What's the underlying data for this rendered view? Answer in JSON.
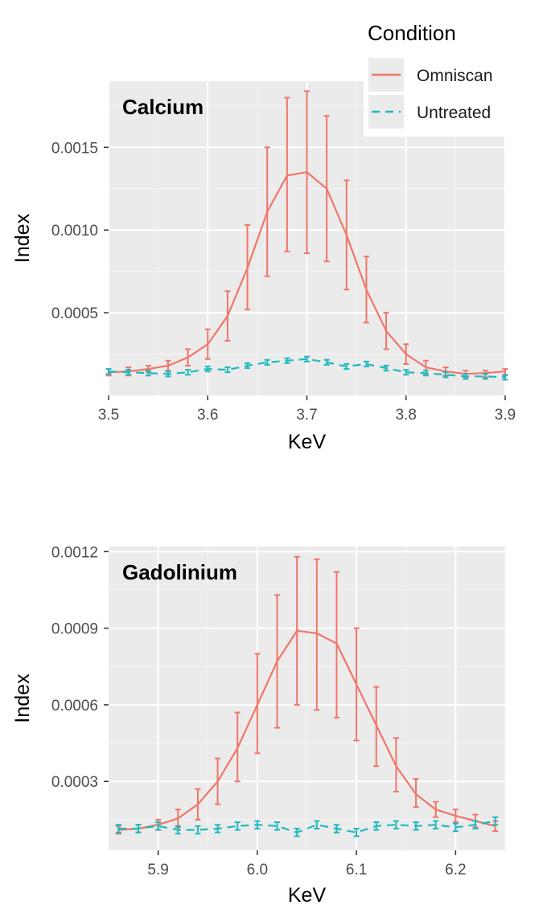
{
  "legend": {
    "title": "Condition",
    "placement": "top-right",
    "items": [
      {
        "label": "Omniscan",
        "color": "#F07669",
        "dash": "solid"
      },
      {
        "label": "Untreated",
        "color": "#1FB9BE",
        "dash": "dashed"
      }
    ]
  },
  "chart_data": [
    {
      "type": "line",
      "title": "Calcium",
      "xlabel": "KeV",
      "ylabel": "Index",
      "xlim": [
        3.5,
        3.9
      ],
      "ylim": [
        0,
        0.0019
      ],
      "x_ticks": [
        "3.5",
        "3.6",
        "3.7",
        "3.8",
        "3.9"
      ],
      "y_ticks": [
        "0.0005",
        "0.0010",
        "0.0015"
      ],
      "grid": true,
      "x": [
        3.5,
        3.52,
        3.54,
        3.56,
        3.58,
        3.6,
        3.62,
        3.64,
        3.66,
        3.68,
        3.7,
        3.72,
        3.74,
        3.76,
        3.78,
        3.8,
        3.82,
        3.84,
        3.86,
        3.88,
        3.9
      ],
      "series": [
        {
          "name": "Omniscan",
          "color": "#F07669",
          "values": [
            0.00014,
            0.000145,
            0.00016,
            0.00018,
            0.00023,
            0.00031,
            0.00048,
            0.00077,
            0.00111,
            0.00133,
            0.00135,
            0.00125,
            0.00097,
            0.00064,
            0.00039,
            0.00025,
            0.00017,
            0.000145,
            0.00013,
            0.000135,
            0.000145
          ],
          "err_low": [
            0.00012,
            0.00012,
            0.00014,
            0.00015,
            0.00018,
            0.00022,
            0.00033,
            0.00052,
            0.00072,
            0.00087,
            0.00086,
            0.00081,
            0.00064,
            0.00044,
            0.00028,
            0.00019,
            0.00013,
            0.00012,
            0.00011,
            0.00011,
            0.00012
          ],
          "err_high": [
            0.00016,
            0.00017,
            0.00018,
            0.00021,
            0.00028,
            0.0004,
            0.00063,
            0.00103,
            0.0015,
            0.0018,
            0.00184,
            0.00169,
            0.0013,
            0.00084,
            0.0005,
            0.00031,
            0.00021,
            0.00017,
            0.00015,
            0.00015,
            0.00016
          ]
        },
        {
          "name": "Untreated",
          "color": "#1FB9BE",
          "values": [
            0.000145,
            0.00014,
            0.000135,
            0.00013,
            0.00014,
            0.00016,
            0.000155,
            0.00018,
            0.0002,
            0.00021,
            0.00022,
            0.0002,
            0.000175,
            0.00019,
            0.000165,
            0.00014,
            0.000135,
            0.000125,
            0.000115,
            0.000115,
            0.00011
          ],
          "err_low": [
            0.00013,
            0.000125,
            0.00012,
            0.000115,
            0.000125,
            0.000145,
            0.00014,
            0.000165,
            0.000185,
            0.000195,
            0.000205,
            0.000185,
            0.00016,
            0.000175,
            0.00015,
            0.000125,
            0.00012,
            0.00011,
            0.0001,
            0.0001,
            9.5e-05
          ],
          "err_high": [
            0.00016,
            0.000155,
            0.00015,
            0.000145,
            0.000155,
            0.000175,
            0.00017,
            0.000195,
            0.000215,
            0.000225,
            0.000235,
            0.000215,
            0.00019,
            0.000205,
            0.00018,
            0.000155,
            0.00015,
            0.00014,
            0.00013,
            0.00013,
            0.000125
          ]
        }
      ]
    },
    {
      "type": "line",
      "title": "Gadolinium",
      "xlabel": "KeV",
      "ylabel": "Index",
      "xlim": [
        5.85,
        6.25
      ],
      "ylim": [
        3e-05,
        0.00122
      ],
      "x_ticks": [
        "5.9",
        "6.0",
        "6.1",
        "6.2"
      ],
      "y_ticks": [
        "0.0003",
        "0.0006",
        "0.0009",
        "0.0012"
      ],
      "grid": true,
      "x": [
        5.86,
        5.88,
        5.9,
        5.92,
        5.94,
        5.96,
        5.98,
        6.0,
        6.02,
        6.04,
        6.06,
        6.08,
        6.1,
        6.12,
        6.14,
        6.16,
        6.18,
        6.2,
        6.22,
        6.24
      ],
      "series": [
        {
          "name": "Omniscan",
          "color": "#F07669",
          "values": [
            0.00011,
            0.000115,
            0.00013,
            0.000155,
            0.00021,
            0.0003,
            0.00043,
            0.0006,
            0.00077,
            0.00089,
            0.00088,
            0.00084,
            0.00068,
            0.00052,
            0.00036,
            0.00025,
            0.00019,
            0.000165,
            0.000145,
            0.000125
          ],
          "err_low": [
            9.5e-05,
            0.0001,
            0.00011,
            0.00012,
            0.00015,
            0.00021,
            0.0003,
            0.00041,
            0.00051,
            0.0006,
            0.00058,
            0.00055,
            0.00046,
            0.00036,
            0.00026,
            0.0002,
            0.00016,
            0.00014,
            0.00012,
            0.000105
          ],
          "err_high": [
            0.000125,
            0.00013,
            0.00015,
            0.00019,
            0.00027,
            0.00039,
            0.00057,
            0.0008,
            0.00103,
            0.00118,
            0.00117,
            0.00112,
            0.0009,
            0.00067,
            0.00047,
            0.00031,
            0.00022,
            0.00019,
            0.00017,
            0.000145
          ]
        },
        {
          "name": "Untreated",
          "color": "#1FB9BE",
          "values": [
            0.000115,
            0.000115,
            0.000125,
            0.00011,
            0.00011,
            0.000115,
            0.000125,
            0.00013,
            0.000125,
            0.0001,
            0.00013,
            0.000115,
            0.0001,
            0.000125,
            0.00013,
            0.000125,
            0.00013,
            0.00012,
            0.00013,
            0.000145
          ],
          "err_low": [
            0.0001,
            0.0001,
            0.00011,
            9.5e-05,
            9.5e-05,
            0.0001,
            0.00011,
            0.000115,
            0.00011,
            8.5e-05,
            0.000115,
            0.0001,
            8.5e-05,
            0.00011,
            0.000115,
            0.00011,
            0.000115,
            0.000105,
            0.000115,
            0.00013
          ],
          "err_high": [
            0.00013,
            0.00013,
            0.00014,
            0.000125,
            0.000125,
            0.00013,
            0.00014,
            0.000145,
            0.00014,
            0.000115,
            0.000145,
            0.00013,
            0.000115,
            0.00014,
            0.000145,
            0.00014,
            0.000145,
            0.000135,
            0.000145,
            0.00016
          ]
        }
      ]
    }
  ]
}
